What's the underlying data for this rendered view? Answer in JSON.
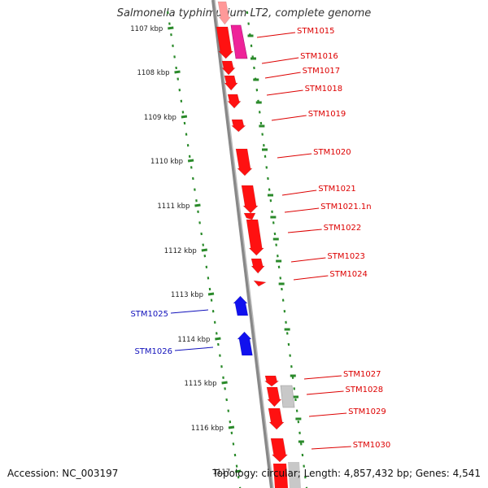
{
  "title": "Salmonella typhimurium LT2, complete genome",
  "accession_text": "Accession: NC_003197",
  "stats_text": "Topology: circular; Length: 4,857,432 bp; Genes: 4,541",
  "colors": {
    "forward_gene": "#ff1111",
    "forward_label": "#dd0000",
    "reverse_gene": "#1111ee",
    "reverse_label": "#1111bb",
    "ruler_dot": "#2a8a2a",
    "backbone": "#888888",
    "highlight": "#ee2299",
    "other_gene": "#c8c8c8"
  },
  "kbp_ticks": [
    "1107 kbp",
    "1108 kbp",
    "1109 kbp",
    "1110 kbp",
    "1111 kbp",
    "1112 kbp",
    "1113 kbp",
    "1114 kbp",
    "1115 kbp",
    "1116 kbp",
    "1117"
  ],
  "forward_genes": [
    "STM1015",
    "STM1016",
    "STM1017",
    "STM1018",
    "STM1019",
    "STM1020",
    "STM1021",
    "STM1021.1n",
    "STM1022",
    "STM1023",
    "STM1024",
    "STM1027",
    "STM1028",
    "STM1029",
    "STM1030"
  ],
  "reverse_genes": [
    "STM1025",
    "STM1026"
  ]
}
